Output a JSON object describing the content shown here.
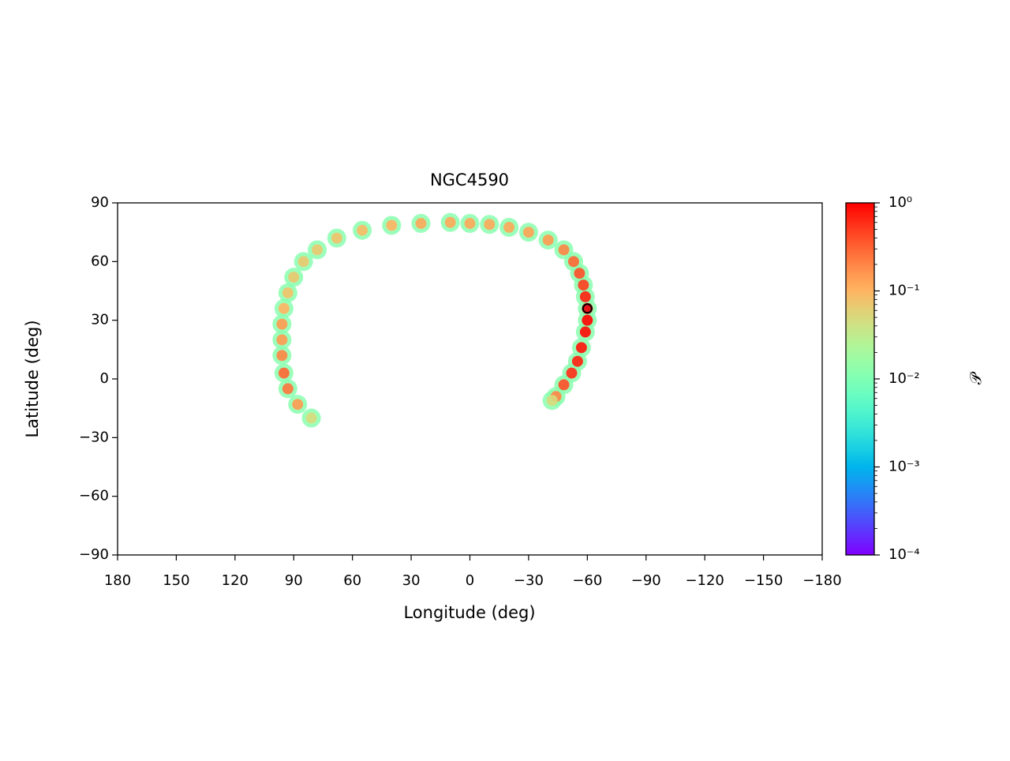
{
  "chart_data": {
    "type": "scatter",
    "title": "NGC4590",
    "x_label": "Longitude (deg)",
    "y_label": "Latitude (deg)",
    "colorbar_label": "𝒫",
    "colormap": "rainbow",
    "log_color": true,
    "xlim": [
      180,
      -180
    ],
    "ylim": [
      -90,
      90
    ],
    "clim": [
      0.0001,
      1
    ],
    "xticks": [
      180,
      150,
      120,
      90,
      60,
      30,
      0,
      {
        "value": -30,
        "label": "−30"
      },
      {
        "value": -60,
        "label": "−60"
      },
      {
        "value": -90,
        "label": "−90"
      },
      {
        "value": -120,
        "label": "−120"
      },
      {
        "value": -150,
        "label": "−150"
      },
      {
        "value": -180,
        "label": "−180"
      }
    ],
    "yticks": [
      {
        "value": -90,
        "label": "−90"
      },
      {
        "value": -60,
        "label": "−60"
      },
      {
        "value": -30,
        "label": "−30"
      },
      0,
      30,
      60,
      90
    ],
    "cticks": [
      {
        "value": 0.0001,
        "label": "10⁻⁴"
      },
      {
        "value": 0.001,
        "label": "10⁻³"
      },
      {
        "value": 0.01,
        "label": "10⁻²"
      },
      {
        "value": 0.1,
        "label": "10⁻¹"
      },
      {
        "value": 1,
        "label": "10⁰"
      }
    ],
    "series": [
      {
        "x": [
          81,
          88,
          93,
          95,
          96,
          96,
          96,
          95,
          93,
          90,
          85,
          78,
          68,
          55,
          40,
          25,
          10,
          0,
          -10,
          -20,
          -30,
          -40,
          -48,
          -53,
          -56,
          -58,
          -59,
          -60,
          -60,
          -59,
          -57,
          -55,
          -52,
          -48,
          -44,
          -42
        ],
        "y": [
          -20,
          -13,
          -5,
          3,
          12,
          20,
          28,
          36,
          44,
          52,
          60,
          66,
          72,
          76,
          78.5,
          79.5,
          80,
          79.5,
          79,
          77.5,
          75,
          71,
          66,
          60,
          54,
          48,
          42,
          36,
          30,
          24,
          16,
          9,
          3,
          -3,
          -9,
          -11
        ],
        "values": [
          0.012,
          0.012,
          0.012,
          0.012,
          0.012,
          0.012,
          0.012,
          0.012,
          0.012,
          0.012,
          0.012,
          0.012,
          0.012,
          0.012,
          0.012,
          0.012,
          0.012,
          0.012,
          0.012,
          0.012,
          0.012,
          0.012,
          0.012,
          0.012,
          0.012,
          0.012,
          0.012,
          0.012,
          0.012,
          0.012,
          0.012,
          0.012,
          0.012,
          0.012,
          0.012,
          0.012
        ]
      },
      {
        "x": [
          81,
          88,
          93,
          95,
          96,
          96,
          96,
          95,
          93,
          90,
          85,
          78,
          68,
          55,
          40,
          25,
          10,
          0,
          -10,
          -20,
          -30,
          -40,
          -48,
          -53,
          -56,
          -58,
          -59,
          -60,
          -60,
          -59,
          -57,
          -55,
          -52,
          -48,
          -44,
          -42
        ],
        "y": [
          -20,
          -13,
          -5,
          3,
          12,
          20,
          28,
          36,
          44,
          52,
          60,
          66,
          72,
          76,
          78.5,
          79.5,
          80,
          79.5,
          79,
          77.5,
          75,
          71,
          66,
          60,
          54,
          48,
          42,
          36,
          30,
          24,
          16,
          9,
          3,
          -3,
          -9,
          -11
        ],
        "values": [
          0.05,
          0.15,
          0.25,
          0.3,
          0.2,
          0.15,
          0.15,
          0.1,
          0.08,
          0.07,
          0.07,
          0.07,
          0.08,
          0.09,
          0.1,
          0.12,
          0.12,
          0.12,
          0.12,
          0.12,
          0.13,
          0.15,
          0.2,
          0.3,
          0.4,
          0.5,
          0.7,
          0.9,
          1,
          0.9,
          0.8,
          0.7,
          0.6,
          0.4,
          0.2,
          0.05
        ]
      }
    ],
    "marker": {
      "x": -60,
      "y": 36,
      "color": "#e8141c"
    }
  }
}
